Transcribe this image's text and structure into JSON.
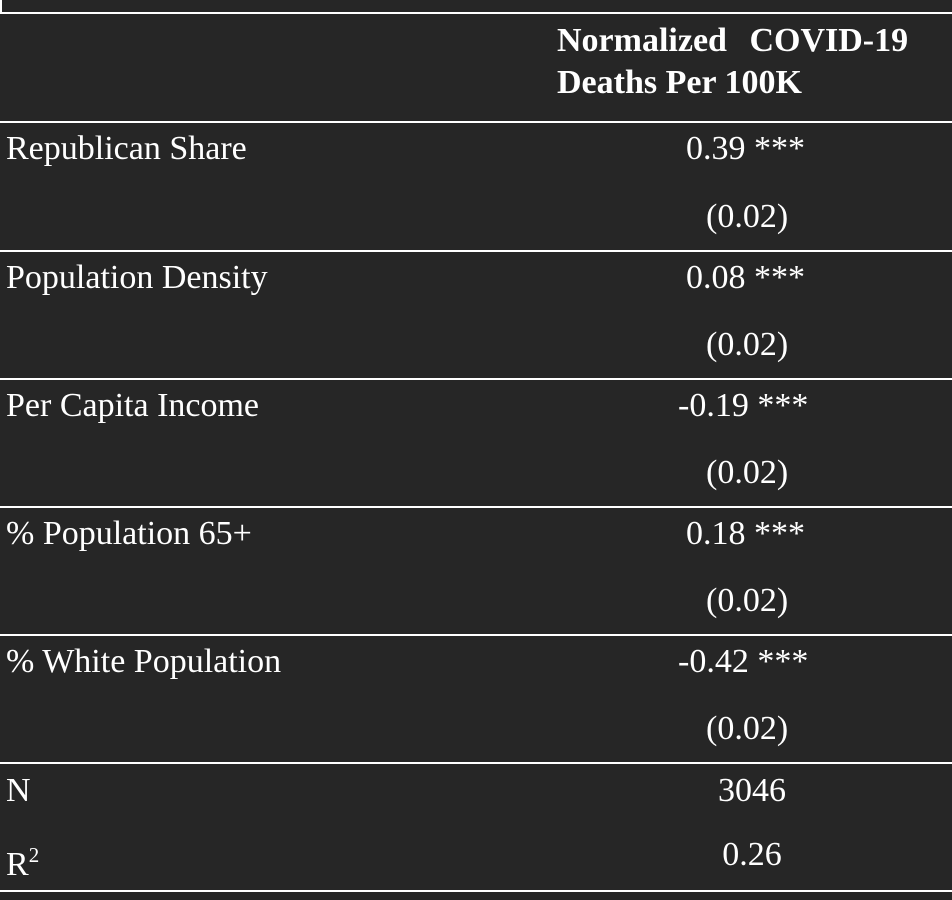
{
  "table": {
    "header_line1": "Normalized COVID-19",
    "header_line2": "Deaths Per 100K",
    "rows": [
      {
        "label": "Republican Share",
        "coef": "0.39",
        "stars": "***",
        "se": "(0.02)"
      },
      {
        "label": "Population Density",
        "coef": "0.08",
        "stars": "***",
        "se": "(0.02)"
      },
      {
        "label": "Per Capita Income",
        "coef": "-0.19",
        "stars": "***",
        "se": "(0.02)"
      },
      {
        "label": "% Population 65+",
        "coef": "0.18",
        "stars": "***",
        "se": "(0.02)"
      },
      {
        "label": "% White Population",
        "coef": "-0.42",
        "stars": "***",
        "se": "(0.02)"
      }
    ],
    "n_label": "N",
    "n_value": "3046",
    "r2_label": "R",
    "r2_sup": "2",
    "r2_value": "0.26"
  }
}
